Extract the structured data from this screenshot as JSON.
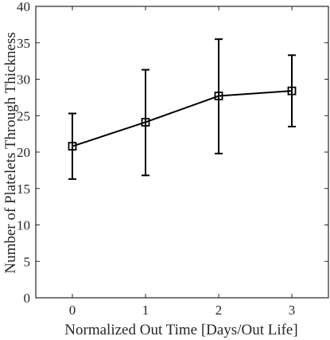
{
  "chart_data": {
    "type": "line",
    "title": "",
    "xlabel": "Normalized Out Time [Days/Out Life]",
    "ylabel": "Number of Platelets Through Thickness",
    "xlim": [
      -0.5,
      3.5
    ],
    "ylim": [
      0,
      40
    ],
    "x_ticks": [
      0,
      1,
      2,
      3
    ],
    "y_ticks": [
      0,
      5,
      10,
      15,
      20,
      25,
      30,
      35,
      40
    ],
    "grid": false,
    "legend": "none",
    "series": [
      {
        "x": [
          0,
          1,
          2,
          3
        ],
        "y": [
          20.8,
          24.1,
          27.7,
          28.4
        ],
        "y_lower": [
          16.3,
          16.8,
          19.8,
          23.5
        ],
        "y_upper": [
          25.3,
          31.3,
          35.5,
          33.3
        ],
        "marker": "square",
        "color": "#000000"
      }
    ]
  }
}
